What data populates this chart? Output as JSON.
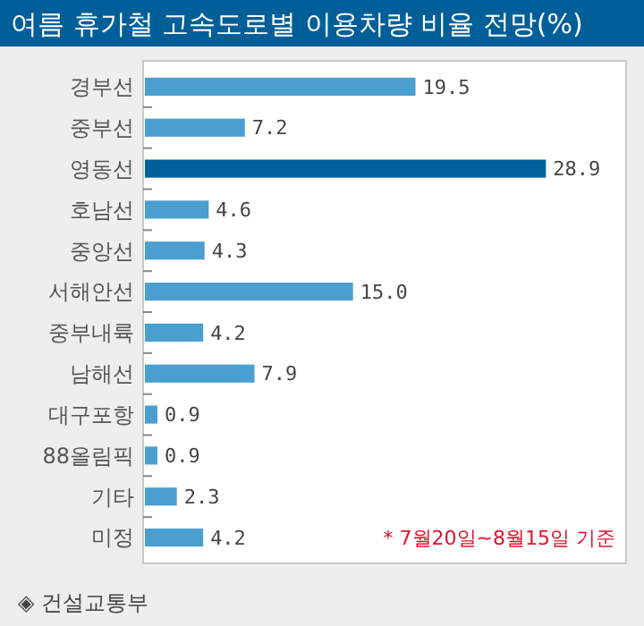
{
  "chart_data": {
    "type": "bar",
    "orientation": "horizontal",
    "title": "여름 휴가철 고속도로별 이용차량 비율 전망(%)",
    "categories": [
      "경부선",
      "중부선",
      "영동선",
      "호남선",
      "중앙선",
      "서해안선",
      "중부내륙",
      "남해선",
      "대구포항",
      "88올림픽",
      "기타",
      "미정"
    ],
    "values": [
      19.5,
      7.2,
      28.9,
      4.6,
      4.3,
      15.0,
      4.2,
      7.9,
      0.9,
      0.9,
      2.3,
      4.2
    ],
    "value_labels": [
      "19.5",
      "7.2",
      "28.9",
      "4.6",
      "4.3",
      "15.0",
      "4.2",
      "7.9",
      "0.9",
      "0.9",
      "2.3",
      "4.2"
    ],
    "colors": [
      "#4a9fd0",
      "#4a9fd0",
      "#00609a",
      "#4a9fd0",
      "#4a9fd0",
      "#4a9fd0",
      "#4a9fd0",
      "#4a9fd0",
      "#4a9fd0",
      "#4a9fd0",
      "#4a9fd0",
      "#4a9fd0"
    ],
    "annotations": [
      "* 7월20일~8월15일 기준",
      "◈ 건설교통부"
    ]
  }
}
